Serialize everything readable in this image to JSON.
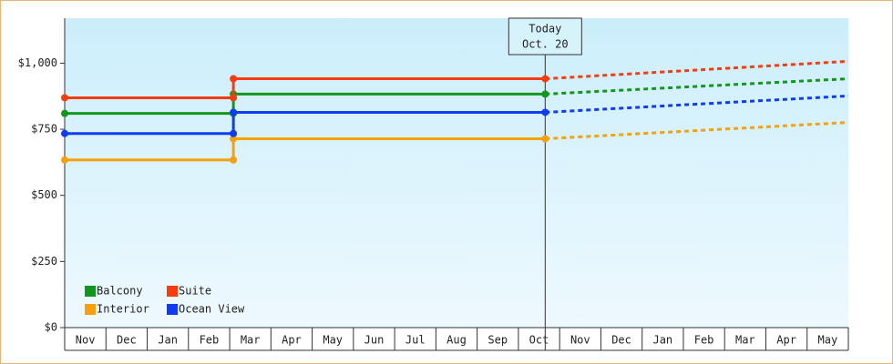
{
  "chart_data": {
    "type": "line",
    "categories": [
      "Nov",
      "Dec",
      "Jan",
      "Feb",
      "Mar",
      "Apr",
      "May",
      "Jun",
      "Jul",
      "Aug",
      "Sep",
      "Oct",
      "Nov",
      "Dec",
      "Jan",
      "Feb",
      "Mar",
      "Apr",
      "May"
    ],
    "xlim": [
      0,
      19
    ],
    "ylim": [
      0,
      1170
    ],
    "yticks": [
      {
        "value": 0,
        "label": "$0"
      },
      {
        "value": 250,
        "label": "$250"
      },
      {
        "value": 500,
        "label": "$500"
      },
      {
        "value": 750,
        "label": "$750"
      },
      {
        "value": 1000,
        "label": "$1,000"
      }
    ],
    "annotation": {
      "x": 11.65,
      "lines": [
        "Today",
        "Oct. 20"
      ]
    },
    "legend": "bottom-left",
    "series": [
      {
        "name": "Balcony",
        "color": "#14961e",
        "x": [
          0,
          4.09,
          4.09,
          11.65
        ],
        "values": [
          810,
          810,
          883,
          883
        ],
        "forecast": {
          "x": [
            11.65,
            19
          ],
          "values": [
            883,
            941
          ]
        }
      },
      {
        "name": "Suite",
        "color": "#f53c0f",
        "x": [
          0,
          4.09,
          4.09,
          11.65
        ],
        "values": [
          869,
          869,
          941,
          941
        ],
        "forecast": {
          "x": [
            11.65,
            19
          ],
          "values": [
            941,
            1007
          ]
        }
      },
      {
        "name": "Interior",
        "color": "#f5a00f",
        "x": [
          0,
          4.09,
          4.09,
          11.65
        ],
        "values": [
          634,
          634,
          714,
          714
        ],
        "forecast": {
          "x": [
            11.65,
            19
          ],
          "values": [
            714,
            776
          ]
        }
      },
      {
        "name": "Ocean View",
        "color": "#0f3cf0",
        "x": [
          0,
          4.09,
          4.09,
          11.65
        ],
        "values": [
          734,
          734,
          814,
          814
        ],
        "forecast": {
          "x": [
            11.65,
            19
          ],
          "values": [
            814,
            876
          ]
        }
      }
    ]
  }
}
